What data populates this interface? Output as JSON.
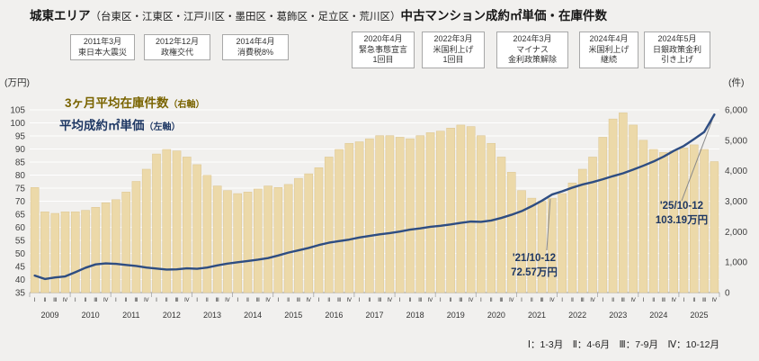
{
  "title": {
    "main1": "城東エリア",
    "paren": "（台東区・江東区・江戸川区・墨田区・葛飾区・足立区・荒川区）",
    "main2": "中古マンション成約㎡単価・在庫件数"
  },
  "axis_units": {
    "left": "(万円)",
    "right": "(件)"
  },
  "legend": {
    "bars": "3ヶ月平均在庫件数",
    "bars_suffix": "（右軸）",
    "line": "平均成約㎡単価",
    "line_suffix": "（左軸）"
  },
  "events": [
    {
      "lines": [
        "2011年3月",
        "東日本大震災"
      ]
    },
    {
      "lines": [
        "2012年12月",
        "政権交代"
      ]
    },
    {
      "lines": [
        "2014年4月",
        "消費税8%"
      ]
    },
    {
      "lines": [
        "2020年4月",
        "緊急事態宣言",
        "1回目"
      ]
    },
    {
      "lines": [
        "2022年3月",
        "米国利上げ",
        "1回目"
      ]
    },
    {
      "lines": [
        "2024年3月",
        "マイナス",
        "金利政策解除"
      ]
    },
    {
      "lines": [
        "2024年4月",
        "米国利上げ",
        "継続"
      ]
    },
    {
      "lines": [
        "2024年5月",
        "日銀政策金利",
        "引き上げ"
      ]
    }
  ],
  "callouts": [
    {
      "lines": [
        "'21/10-12",
        "72.57万円"
      ]
    },
    {
      "lines": [
        "'25/10-12",
        "103.19万円"
      ]
    }
  ],
  "footnote": "Ⅰ：1-3月　Ⅱ：4-6月　Ⅲ：7-9月　Ⅳ：10-12月",
  "chart_data": {
    "type": "bar+line",
    "title": "城東エリア（台東区・江東区・江戸川区・墨田区・葛飾区・足立区・荒川区）中古マンション成約㎡単価・在庫件数",
    "years": [
      2009,
      2010,
      2011,
      2012,
      2013,
      2014,
      2015,
      2016,
      2017,
      2018,
      2019,
      2020,
      2021,
      2022,
      2023,
      2024,
      2025
    ],
    "quarter_labels": [
      "Ⅰ",
      "Ⅱ",
      "Ⅲ",
      "Ⅳ"
    ],
    "left_axis": {
      "label": "(万円)",
      "min": 35,
      "max": 105,
      "step": 5
    },
    "right_axis": {
      "label": "(件)",
      "min": 0,
      "max": 6000,
      "step": 1000
    },
    "grid": true,
    "legend_position": "top-left",
    "series": [
      {
        "name": "3ヶ月平均在庫件数",
        "type": "bar",
        "axis": "right",
        "values": [
          3450,
          2650,
          2600,
          2650,
          2650,
          2700,
          2800,
          2950,
          3050,
          3300,
          3650,
          4050,
          4550,
          4700,
          4650,
          4450,
          4200,
          3850,
          3500,
          3350,
          3250,
          3300,
          3400,
          3500,
          3450,
          3550,
          3750,
          3900,
          4100,
          4450,
          4700,
          4900,
          4950,
          5050,
          5150,
          5150,
          5100,
          5050,
          5150,
          5250,
          5300,
          5400,
          5500,
          5450,
          5150,
          4900,
          4450,
          3950,
          3350,
          3100,
          3000,
          3100,
          3250,
          3600,
          4050,
          4450,
          5100,
          5700,
          5900,
          5500,
          5000,
          4700,
          4600,
          4650,
          4750,
          4850,
          4700,
          4300
        ]
      },
      {
        "name": "平均成約㎡単価",
        "type": "line",
        "axis": "left",
        "values": [
          41.5,
          40.2,
          40.8,
          41.2,
          42.8,
          44.5,
          45.8,
          46.2,
          46.0,
          45.6,
          45.2,
          44.6,
          44.2,
          43.8,
          43.9,
          44.3,
          44.1,
          44.6,
          45.4,
          46.1,
          46.6,
          47.1,
          47.6,
          48.2,
          49.2,
          50.3,
          51.2,
          52.1,
          53.2,
          54.1,
          54.7,
          55.3,
          56.1,
          56.7,
          57.3,
          57.8,
          58.4,
          59.1,
          59.6,
          60.2,
          60.6,
          61.1,
          61.7,
          62.2,
          62.1,
          62.6,
          63.6,
          64.8,
          66.2,
          68.1,
          70.2,
          72.57,
          73.8,
          75.2,
          76.4,
          77.3,
          78.4,
          79.6,
          80.7,
          82.1,
          83.6,
          85.2,
          87.1,
          89.3,
          91.2,
          93.8,
          96.5,
          103.19
        ]
      }
    ],
    "annotations": [
      {
        "year": 2021,
        "quarter": 4,
        "value": 72.57,
        "label": "'21/10-12 72.57万円"
      },
      {
        "year": 2025,
        "quarter": 4,
        "value": 103.19,
        "label": "'25/10-12 103.19万円"
      }
    ],
    "colors": {
      "bar": "#ecd9a9",
      "bar_stroke": "#dcc48e",
      "line": "#2e4d82"
    }
  }
}
